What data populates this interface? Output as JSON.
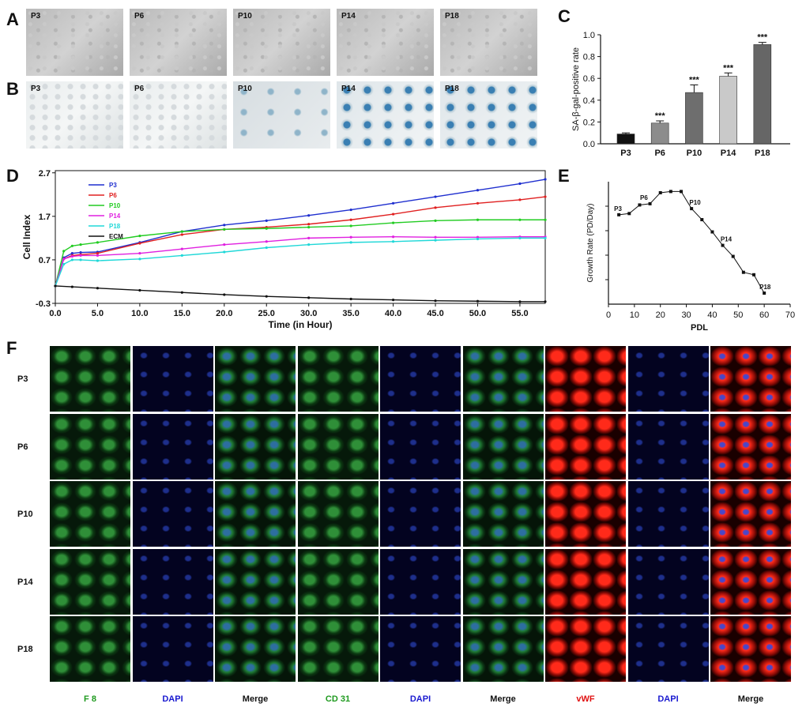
{
  "panel_labels": [
    "A",
    "B",
    "C",
    "D",
    "E",
    "F"
  ],
  "panel_a": {
    "passages": [
      "P3",
      "P6",
      "P10",
      "P14",
      "P18"
    ]
  },
  "panel_b": {
    "passages": [
      "P3",
      "P6",
      "P10",
      "P14",
      "P18"
    ]
  },
  "chart_data": [
    {
      "id": "C",
      "type": "bar",
      "categories": [
        "P3",
        "P6",
        "P10",
        "P14",
        "P18"
      ],
      "values": [
        0.09,
        0.19,
        0.47,
        0.62,
        0.91
      ],
      "errors": [
        0.01,
        0.02,
        0.07,
        0.03,
        0.02
      ],
      "annotations": [
        "",
        "***",
        "***",
        "***",
        "***"
      ],
      "bar_colors": [
        "#111111",
        "#8c8c8c",
        "#6e6e6e",
        "#c9c9c9",
        "#666666"
      ],
      "ylabel": "SA-β-gal-positive rate",
      "ylim": [
        0.0,
        1.0
      ],
      "yticks": [
        "0.0",
        "0.2",
        "0.4",
        "0.6",
        "0.8",
        "1.0"
      ]
    },
    {
      "id": "D",
      "type": "line",
      "xlabel": "Time (in Hour)",
      "ylabel": "Cell Index",
      "xlim": [
        0,
        58
      ],
      "ylim": [
        -0.3,
        2.75
      ],
      "xticks": [
        "0.0",
        "5.0",
        "10.0",
        "15.0",
        "20.0",
        "25.0",
        "30.0",
        "35.0",
        "40.0",
        "45.0",
        "50.0",
        "55.0"
      ],
      "yticks": [
        "-0.3",
        "0.7",
        "1.7",
        "2.7"
      ],
      "series": [
        {
          "name": "P3",
          "color": "#1f2fcf",
          "x": [
            0,
            1,
            2,
            3,
            5,
            10,
            15,
            20,
            25,
            30,
            35,
            40,
            45,
            50,
            55,
            58
          ],
          "y": [
            0.1,
            0.75,
            0.85,
            0.87,
            0.88,
            1.1,
            1.35,
            1.5,
            1.6,
            1.72,
            1.85,
            2.0,
            2.15,
            2.3,
            2.45,
            2.55
          ]
        },
        {
          "name": "P6",
          "color": "#e02020",
          "x": [
            0,
            1,
            2,
            3,
            5,
            10,
            15,
            20,
            25,
            30,
            35,
            40,
            45,
            50,
            55,
            58
          ],
          "y": [
            0.1,
            0.72,
            0.8,
            0.82,
            0.85,
            1.08,
            1.28,
            1.4,
            1.45,
            1.52,
            1.62,
            1.75,
            1.9,
            2.0,
            2.08,
            2.15
          ]
        },
        {
          "name": "P10",
          "color": "#22cc22",
          "x": [
            0,
            1,
            2,
            3,
            5,
            10,
            15,
            20,
            25,
            30,
            35,
            40,
            45,
            50,
            55,
            58
          ],
          "y": [
            0.1,
            0.9,
            1.02,
            1.05,
            1.1,
            1.25,
            1.35,
            1.4,
            1.42,
            1.45,
            1.48,
            1.55,
            1.6,
            1.62,
            1.62,
            1.62
          ]
        },
        {
          "name": "P14",
          "color": "#e020e0",
          "x": [
            0,
            1,
            2,
            3,
            5,
            10,
            15,
            20,
            25,
            30,
            35,
            40,
            45,
            50,
            55,
            58
          ],
          "y": [
            0.1,
            0.72,
            0.78,
            0.8,
            0.8,
            0.85,
            0.95,
            1.05,
            1.12,
            1.2,
            1.22,
            1.23,
            1.22,
            1.22,
            1.23,
            1.23
          ]
        },
        {
          "name": "P18",
          "color": "#20d8d8",
          "x": [
            0,
            1,
            2,
            3,
            5,
            10,
            15,
            20,
            25,
            30,
            35,
            40,
            45,
            50,
            55,
            58
          ],
          "y": [
            0.1,
            0.6,
            0.7,
            0.7,
            0.68,
            0.72,
            0.8,
            0.88,
            0.98,
            1.05,
            1.1,
            1.12,
            1.15,
            1.18,
            1.2,
            1.2
          ]
        },
        {
          "name": "ECM",
          "color": "#111111",
          "x": [
            0,
            2,
            5,
            10,
            15,
            20,
            25,
            30,
            35,
            40,
            45,
            50,
            55,
            58
          ],
          "y": [
            0.1,
            0.08,
            0.05,
            0.0,
            -0.05,
            -0.1,
            -0.14,
            -0.17,
            -0.2,
            -0.22,
            -0.24,
            -0.25,
            -0.26,
            -0.26
          ]
        }
      ]
    },
    {
      "id": "E",
      "type": "line",
      "xlabel": "PDL",
      "ylabel": "Growth Rate (PD/Day)",
      "xlim": [
        0,
        70
      ],
      "xticks": [
        "0",
        "10",
        "20",
        "30",
        "40",
        "50",
        "60",
        "70"
      ],
      "ylim": [
        0,
        1
      ],
      "series": [
        {
          "name": "Growth rate",
          "color": "#111111",
          "x": [
            4,
            8,
            12,
            16,
            20,
            24,
            28,
            32,
            36,
            40,
            44,
            48,
            52,
            56,
            60
          ],
          "y": [
            0.73,
            0.74,
            0.81,
            0.82,
            0.91,
            0.92,
            0.92,
            0.78,
            0.69,
            0.59,
            0.48,
            0.39,
            0.26,
            0.24,
            0.09
          ]
        }
      ],
      "point_labels": [
        {
          "text": "P3",
          "x": 4,
          "y": 0.73
        },
        {
          "text": "P6",
          "x": 14,
          "y": 0.82
        },
        {
          "text": "P10",
          "x": 33,
          "y": 0.78
        },
        {
          "text": "P14",
          "x": 45,
          "y": 0.48
        },
        {
          "text": "P18",
          "x": 60,
          "y": 0.09
        }
      ]
    }
  ],
  "panel_f": {
    "rows": [
      "P3",
      "P6",
      "P10",
      "P14",
      "P18"
    ],
    "columns": [
      {
        "label": "F 8",
        "color": "#1f9a1f",
        "channel": "fg"
      },
      {
        "label": "DAPI",
        "color": "#1a1ad0",
        "channel": "fb"
      },
      {
        "label": "Merge",
        "color": "#111111",
        "channel": "fm"
      },
      {
        "label": "CD 31",
        "color": "#1f9a1f",
        "channel": "fg"
      },
      {
        "label": "DAPI",
        "color": "#1a1ad0",
        "channel": "fb"
      },
      {
        "label": "Merge",
        "color": "#111111",
        "channel": "fm"
      },
      {
        "label": "vWF",
        "color": "#e01010",
        "channel": "fr"
      },
      {
        "label": "DAPI",
        "color": "#1a1ad0",
        "channel": "fb"
      },
      {
        "label": "Merge",
        "color": "#111111",
        "channel": "frm"
      }
    ]
  }
}
